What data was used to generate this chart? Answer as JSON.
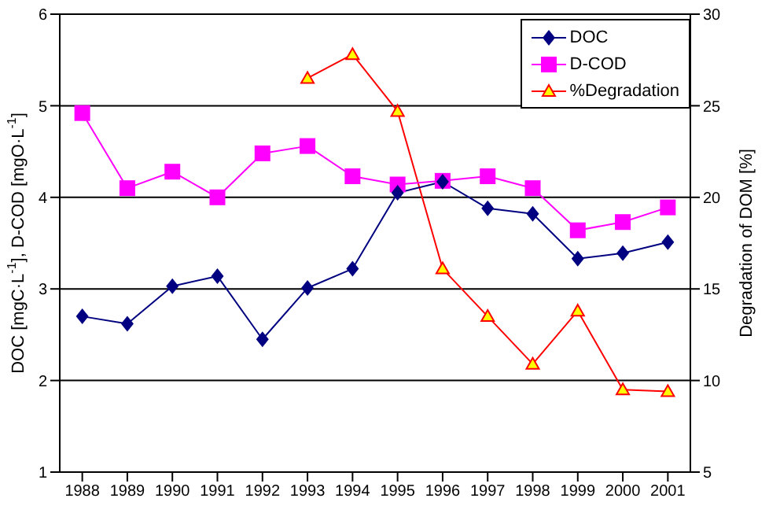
{
  "chart_data": {
    "type": "line",
    "categories": [
      "1988",
      "1989",
      "1990",
      "1991",
      "1992",
      "1993",
      "1994",
      "1995",
      "1996",
      "1997",
      "1998",
      "1999",
      "2000",
      "2001"
    ],
    "series": [
      {
        "name": "DOC",
        "color": "#000080",
        "marker": "diamond",
        "values": [
          2.7,
          2.62,
          3.03,
          3.14,
          2.45,
          3.01,
          3.22,
          4.05,
          4.17,
          3.88,
          3.82,
          3.33,
          3.39,
          3.51
        ]
      },
      {
        "name": "D-COD",
        "color": "#ff00ff",
        "marker": "square",
        "values": [
          4.92,
          4.1,
          4.28,
          4.0,
          4.48,
          4.56,
          4.23,
          4.14,
          4.18,
          4.23,
          4.1,
          3.64,
          3.73,
          3.89
        ]
      },
      {
        "name": "%Degradation",
        "color": "#ff0000",
        "marker": "triangle",
        "axis": "y2",
        "values": [
          null,
          null,
          null,
          null,
          null,
          26.5,
          27.8,
          24.7,
          16.1,
          13.5,
          10.9,
          13.8,
          9.5,
          9.4
        ]
      }
    ],
    "ylabel": "DOC [mgC·L$^{-1}$], D-COD [mgO·L$^{-1}$]",
    "y2label": "Degradation of DOM [%]",
    "ylim": [
      1,
      6
    ],
    "yticks": [
      1,
      2,
      3,
      4,
      5,
      6
    ],
    "y2lim": [
      5,
      30
    ],
    "y2ticks": [
      5,
      10,
      15,
      20,
      25,
      30
    ],
    "grid": "y",
    "legend": "top right"
  }
}
